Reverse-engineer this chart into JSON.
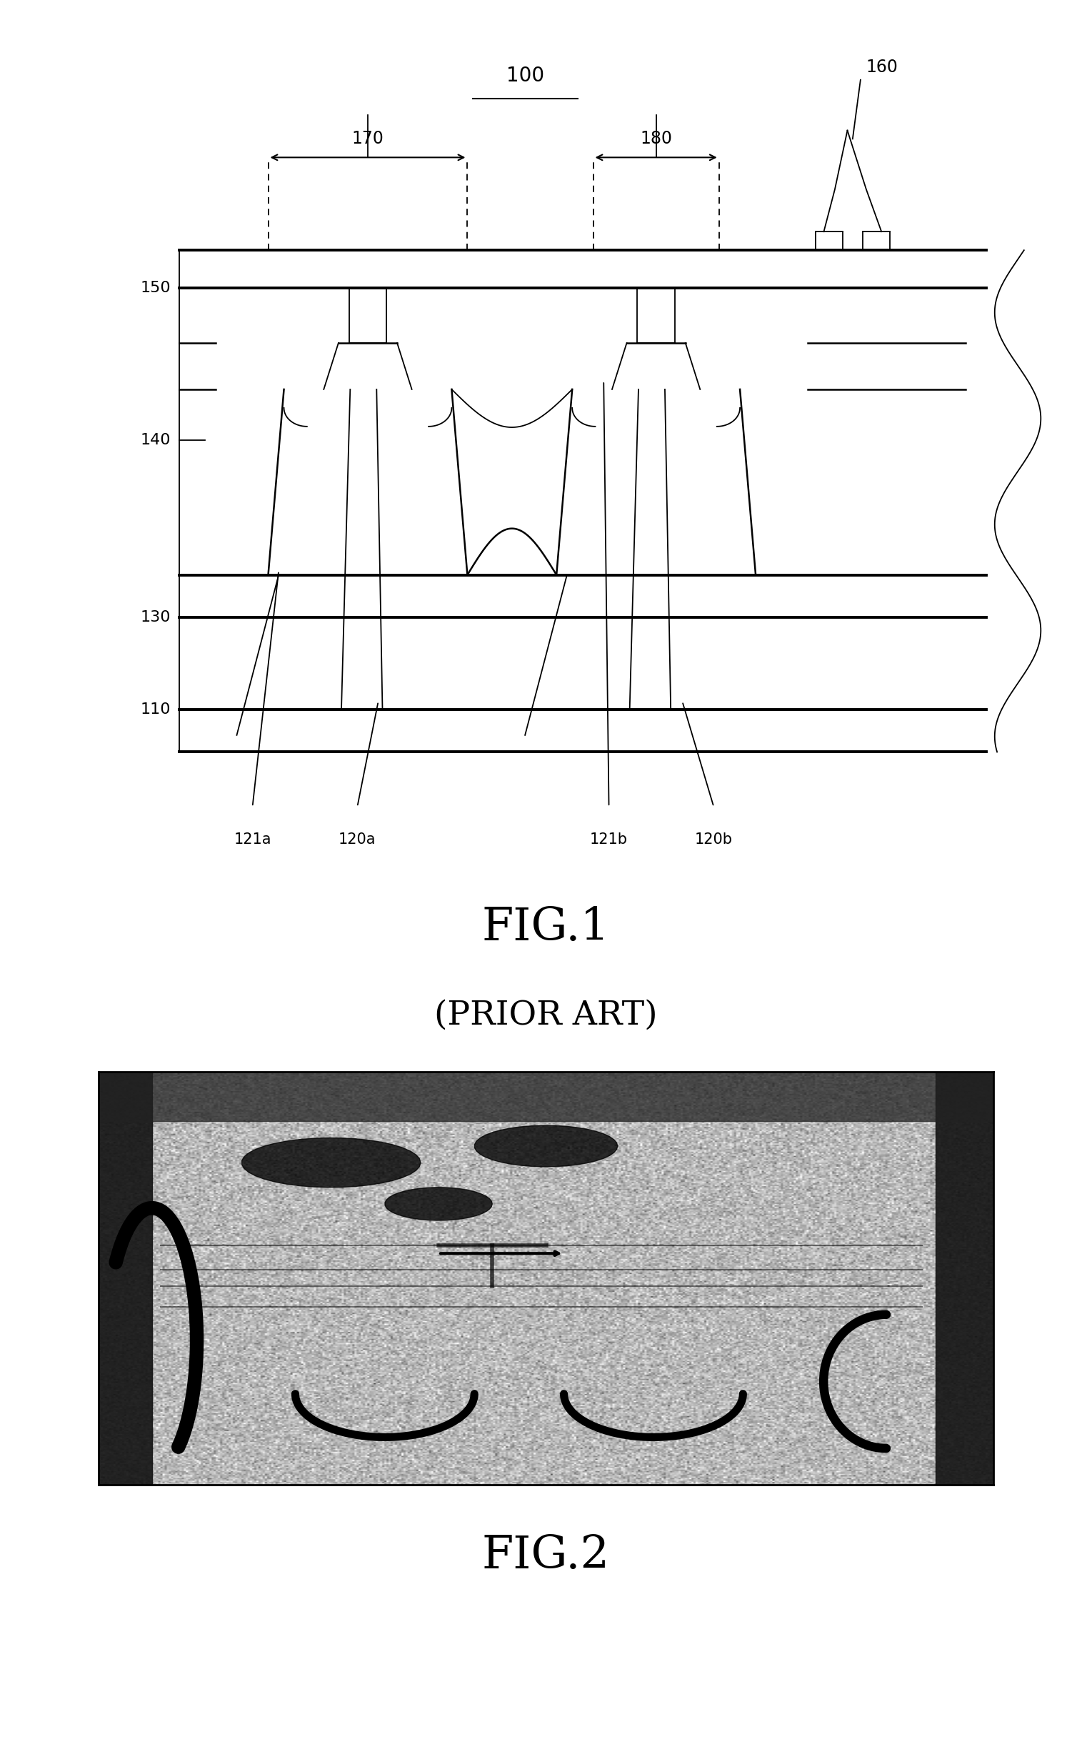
{
  "fig1_caption": "FIG.1",
  "fig1_subcaption": "(PRIOR ART)",
  "fig2_caption": "FIG.2",
  "background_color": "#ffffff",
  "title_100": "100",
  "label_150": "150",
  "label_140": "140",
  "label_130": "130",
  "label_110": "110",
  "label_170": "170",
  "label_180": "180",
  "label_160": "160",
  "label_121a": "121a",
  "label_120a": "120a",
  "label_121b": "121b",
  "label_120b": "120b"
}
